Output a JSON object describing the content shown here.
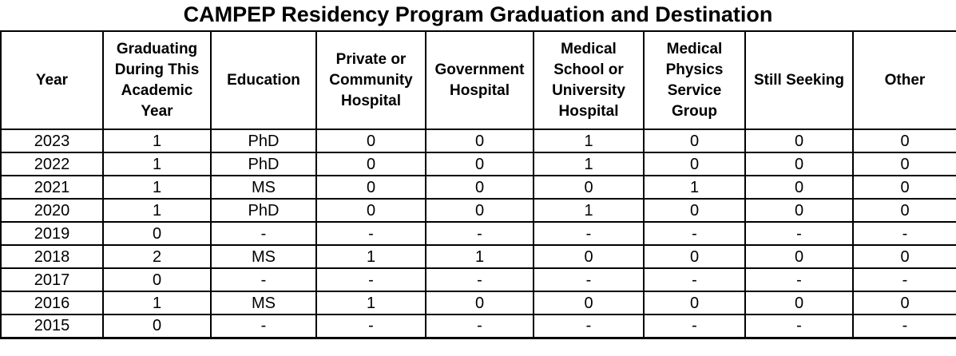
{
  "title": "CAMPEP Residency Program Graduation and Destination",
  "table": {
    "columns": [
      "Year",
      "Graduating During This Academic Year",
      "Education",
      "Private or Community Hospital",
      "Government Hospital",
      "Medical School or University Hospital",
      "Medical Physics Service Group",
      "Still Seeking",
      "Other"
    ],
    "rows": [
      [
        "2023",
        "1",
        "PhD",
        "0",
        "0",
        "1",
        "0",
        "0",
        "0"
      ],
      [
        "2022",
        "1",
        "PhD",
        "0",
        "0",
        "1",
        "0",
        "0",
        "0"
      ],
      [
        "2021",
        "1",
        "MS",
        "0",
        "0",
        "0",
        "1",
        "0",
        "0"
      ],
      [
        "2020",
        "1",
        "PhD",
        "0",
        "0",
        "1",
        "0",
        "0",
        "0"
      ],
      [
        "2019",
        "0",
        "-",
        "-",
        "-",
        "-",
        "-",
        "-",
        "-"
      ],
      [
        "2018",
        "2",
        "MS",
        "1",
        "1",
        "0",
        "0",
        "0",
        "0"
      ],
      [
        "2017",
        "0",
        "-",
        "-",
        "-",
        "-",
        "-",
        "-",
        "-"
      ],
      [
        "2016",
        "1",
        "MS",
        "1",
        "0",
        "0",
        "0",
        "0",
        "0"
      ],
      [
        "2015",
        "0",
        "-",
        "-",
        "-",
        "-",
        "-",
        "-",
        "-"
      ]
    ]
  },
  "colors": {
    "text": "#000000",
    "background": "#ffffff",
    "border": "#000000"
  }
}
